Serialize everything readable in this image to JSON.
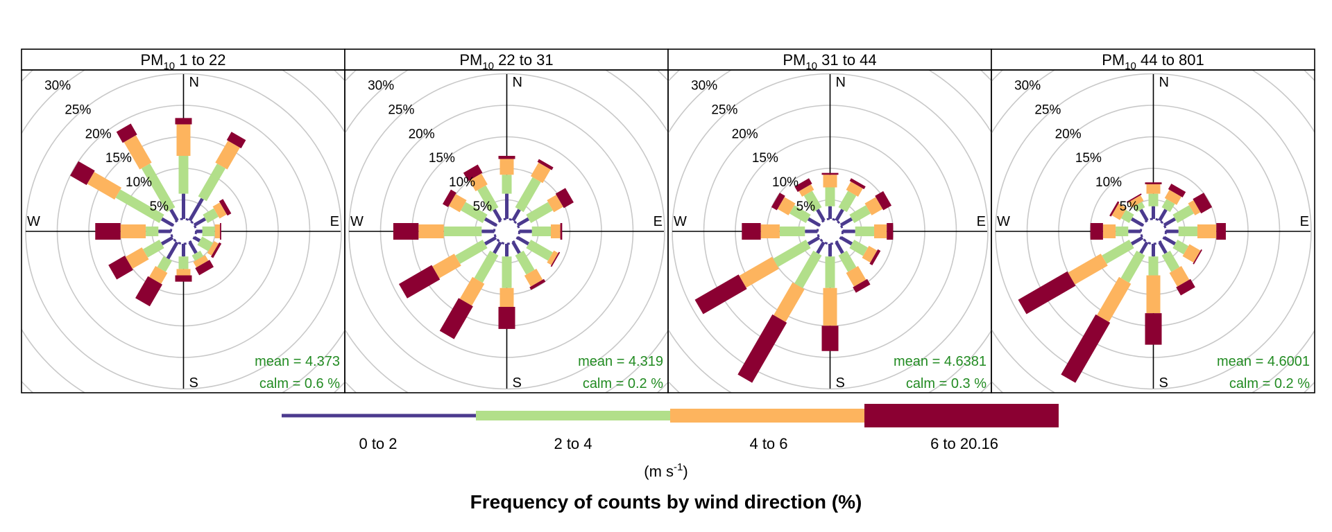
{
  "chart_data": {
    "type": "windrose",
    "title": "Frequency of counts by wind direction (%)",
    "units_label": "(m s",
    "units_sup": "-1",
    "units_close": ")",
    "radial_ticks": [
      "5%",
      "10%",
      "15%",
      "20%",
      "25%",
      "30%"
    ],
    "radial_tick_values": [
      5,
      10,
      15,
      20,
      25,
      30
    ],
    "radial_clip_label": "5%",
    "radial_max": 35,
    "directions_deg": [
      0,
      30,
      60,
      90,
      120,
      150,
      180,
      210,
      240,
      270,
      300,
      330
    ],
    "compass": {
      "n": "N",
      "e": "E",
      "s": "S",
      "w": "W"
    },
    "colors": {
      "bin_0_2": "#4b3a8e",
      "bin_2_4": "#b2df8a",
      "bin_4_6": "#fdb45e",
      "bin_6_20": "#8b0032",
      "mean_text": "#228b22",
      "grid": "#c8c8c8"
    },
    "bins": [
      {
        "label": "0 to 2",
        "color": "#4b3a8e"
      },
      {
        "label": "2 to 4",
        "color": "#b2df8a"
      },
      {
        "label": "4 to 6",
        "color": "#fdb45e"
      },
      {
        "label": "6 to 20.16",
        "color": "#8b0032"
      }
    ],
    "panels": [
      {
        "strip_sym": "PM",
        "strip_sub": "10",
        "strip_rest": " 1 to 22",
        "mean_label": "mean",
        "mean_value": "4.373",
        "calm_label": "calm",
        "calm_value": "0.6 %",
        "cumulative": [
          [
            4,
            10,
            15,
            16
          ],
          [
            4,
            10,
            14,
            15.5
          ],
          [
            2,
            4,
            5.3,
            6
          ],
          [
            1,
            3,
            3.8,
            4
          ],
          [
            1,
            3,
            3.8,
            4.2
          ],
          [
            2,
            3,
            4,
            5.3
          ],
          [
            2,
            4,
            5,
            6
          ],
          [
            3,
            5,
            7,
            11
          ],
          [
            2,
            5,
            8,
            11
          ],
          [
            2,
            4,
            8,
            12
          ],
          [
            2,
            10,
            15,
            18
          ],
          [
            2,
            10,
            15,
            17
          ]
        ]
      },
      {
        "strip_sym": "PM",
        "strip_sub": "10",
        "strip_rest": " 22 to 31",
        "mean_label": "mean",
        "mean_value": "4.319",
        "calm_label": "calm",
        "calm_value": "0.2 %",
        "cumulative": [
          [
            4,
            7,
            9.5,
            10
          ],
          [
            2,
            7.5,
            10,
            10.5
          ],
          [
            2,
            6,
            7.7,
            9.5
          ],
          [
            2,
            5,
            6.5,
            6.8
          ],
          [
            2,
            6,
            6.8,
            7
          ],
          [
            2,
            5.5,
            7.5,
            8
          ],
          [
            2,
            7,
            10,
            13.5
          ],
          [
            2,
            7,
            11,
            17
          ],
          [
            2,
            7,
            11,
            17
          ],
          [
            2,
            8,
            12,
            16
          ],
          [
            2,
            6,
            8,
            9
          ],
          [
            2,
            6,
            8,
            9.5
          ]
        ]
      },
      {
        "strip_sym": "PM",
        "strip_sub": "10",
        "strip_rest": " 31 to 44",
        "mean_label": "mean",
        "mean_value": "4.6381",
        "calm_label": "calm",
        "calm_value": "0.3 %",
        "cumulative": [
          [
            2,
            5,
            7,
            7.3
          ],
          [
            2,
            5,
            6.5,
            7
          ],
          [
            2,
            5,
            7,
            8.5
          ],
          [
            2,
            5,
            7,
            8
          ],
          [
            2,
            4.5,
            6,
            6.5
          ],
          [
            2,
            5,
            7.5,
            8.5
          ],
          [
            2,
            7,
            13,
            17
          ],
          [
            2,
            8,
            14,
            25
          ],
          [
            2,
            8,
            14,
            22
          ],
          [
            2,
            6,
            9,
            12
          ],
          [
            2,
            5,
            7,
            8
          ],
          [
            2,
            5,
            6,
            7
          ]
        ]
      },
      {
        "strip_sym": "PM",
        "strip_sub": "10",
        "strip_rest": " 44 to 801",
        "mean_label": "mean",
        "mean_value": "4.6001",
        "calm_label": "calm",
        "calm_value": "0.2 %",
        "cumulative": [
          [
            2,
            4,
            5.5,
            5.8
          ],
          [
            2,
            3.5,
            5,
            6
          ],
          [
            2,
            5,
            6,
            8
          ],
          [
            2,
            5,
            8,
            9.5
          ],
          [
            2,
            4,
            6,
            6.2
          ],
          [
            2,
            5,
            7.5,
            9
          ],
          [
            2,
            5,
            11,
            16
          ],
          [
            2,
            7,
            14,
            25
          ],
          [
            2,
            7,
            13,
            22
          ],
          [
            2,
            4,
            6,
            8
          ],
          [
            2,
            3.5,
            5,
            5.3
          ],
          [
            2,
            3,
            4,
            4.2
          ]
        ]
      }
    ]
  }
}
